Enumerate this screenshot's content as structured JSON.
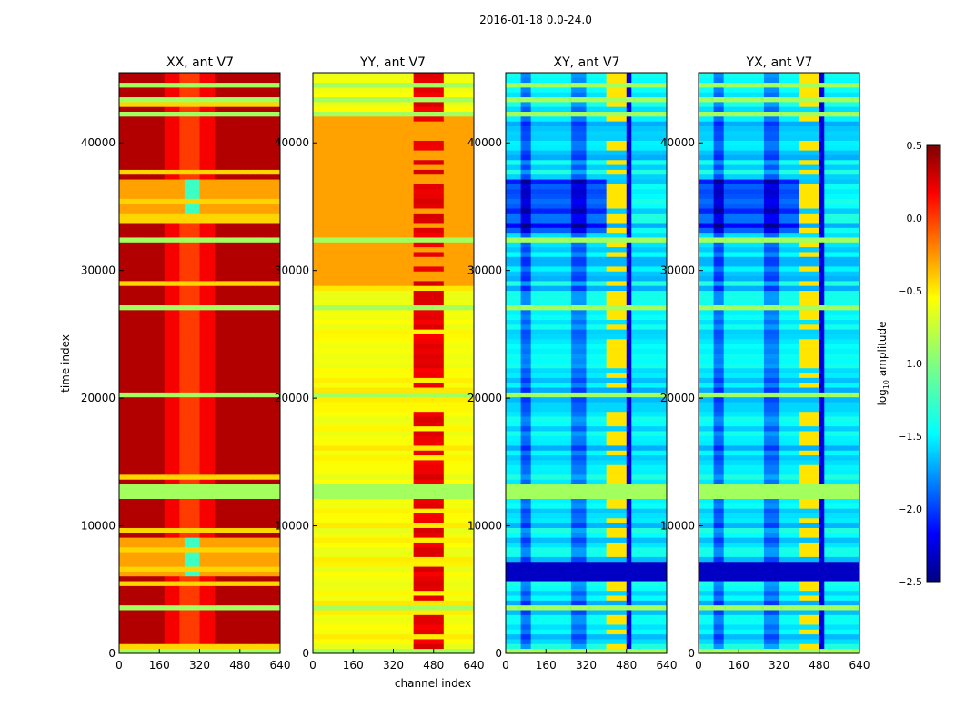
{
  "figure": {
    "suptitle": "2016-01-18 0.0-24.0",
    "colormap": "jet"
  },
  "chart_data": [
    {
      "type": "heatmap",
      "title": "XX, ant V7",
      "xlabel": "",
      "ylabel": "time index",
      "xlim": [
        0,
        640
      ],
      "ylim": [
        0,
        45500
      ],
      "xticks": [
        "0",
        "160",
        "320",
        "480",
        "640"
      ],
      "yticks": [
        "0",
        "10000",
        "20000",
        "30000",
        "40000"
      ],
      "description_values": "log10 amplitude mostly ~0.3 (dark red), channel ~250-300 near 0.0; flagged bands at -1.0",
      "base_level": 0.35,
      "profile": "xx"
    },
    {
      "type": "heatmap",
      "title": "YY, ant V7",
      "xlabel": "channel index",
      "ylabel": "",
      "xlim": [
        0,
        640
      ],
      "ylim": [
        0,
        45500
      ],
      "xticks": [
        "0",
        "160",
        "320",
        "480",
        "640"
      ],
      "yticks": [
        "0",
        "10000",
        "20000",
        "30000",
        "40000"
      ],
      "base_level": -0.55,
      "profile": "yy"
    },
    {
      "type": "heatmap",
      "title": "XY, ant V7",
      "xlabel": "",
      "ylabel": "",
      "xlim": [
        0,
        640
      ],
      "ylim": [
        0,
        45500
      ],
      "xticks": [
        "0",
        "160",
        "320",
        "480",
        "640"
      ],
      "yticks": [
        "0",
        "10000",
        "20000",
        "30000",
        "40000"
      ],
      "base_level": -1.45,
      "profile": "cross"
    },
    {
      "type": "heatmap",
      "title": "YX, ant V7",
      "xlabel": "",
      "ylabel": "",
      "xlim": [
        0,
        640
      ],
      "ylim": [
        0,
        45500
      ],
      "xticks": [
        "0",
        "160",
        "320",
        "480",
        "640"
      ],
      "yticks": [
        "0",
        "10000",
        "20000",
        "30000",
        "40000"
      ],
      "base_level": -1.45,
      "profile": "cross"
    }
  ],
  "colorbar": {
    "label_main": "log",
    "label_sub": "10",
    "label_rest": " amplitude",
    "vmin": -2.5,
    "vmax": 0.5,
    "ticks": [
      "0.5",
      "0.0",
      "−0.5",
      "−1.0",
      "−1.5",
      "−2.0",
      "−2.5"
    ],
    "tick_values": [
      0.5,
      0.0,
      -0.5,
      -1.0,
      -1.5,
      -2.0,
      -2.5
    ]
  },
  "flag_bands": [
    [
      0,
      300
    ],
    [
      3400,
      3900
    ],
    [
      12200,
      13200
    ],
    [
      16500,
      16700
    ],
    [
      20200,
      20500
    ],
    [
      27000,
      27200
    ],
    [
      32300,
      32600
    ],
    [
      42000,
      42400
    ],
    [
      43200,
      43500
    ],
    [
      44500,
      44700
    ]
  ]
}
